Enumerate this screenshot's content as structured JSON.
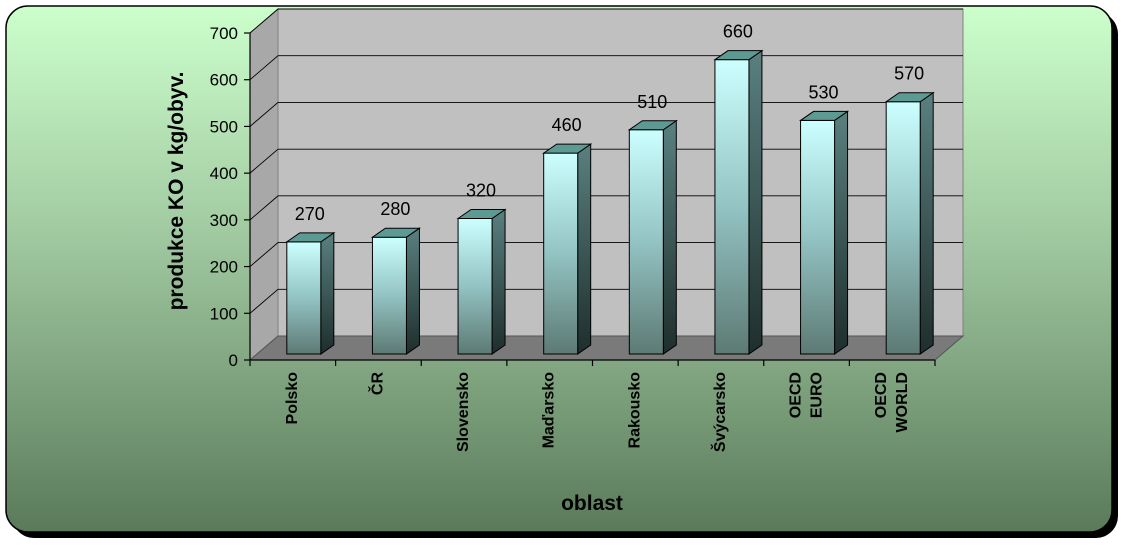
{
  "chart_data": {
    "type": "bar",
    "categories": [
      "Polsko",
      "ČR",
      "Slovensko",
      "Maďarsko",
      "Rakousko",
      "Švýcarsko",
      "OECD EURO",
      "OECD WORLD"
    ],
    "category_lines": [
      [
        "Polsko"
      ],
      [
        "ČR"
      ],
      [
        "Slovensko"
      ],
      [
        "Maďarsko"
      ],
      [
        "Rakousko"
      ],
      [
        "Švýcarsko"
      ],
      [
        "OECD",
        "EURO"
      ],
      [
        "OECD",
        "WORLD"
      ]
    ],
    "values": [
      270,
      280,
      320,
      460,
      510,
      660,
      530,
      570
    ],
    "value_labels": [
      "270",
      "280",
      "320",
      "460",
      "510",
      "660",
      "530",
      "570"
    ],
    "xlabel": "oblast",
    "ylabel": "produkce KO v kg/obyv.",
    "ylim": [
      0,
      700
    ],
    "yticks": [
      0,
      100,
      200,
      300,
      400,
      500,
      600,
      700
    ],
    "grid": true,
    "style": "3d-column",
    "colors": {
      "bar_top": "#ccffff",
      "bar_bottom": "#5d7a74",
      "plot_wall": "#c0c0c0",
      "floor": "#7a7a7a",
      "panel_top": "#ccffcc",
      "panel_bottom": "#5a7a5a"
    }
  }
}
